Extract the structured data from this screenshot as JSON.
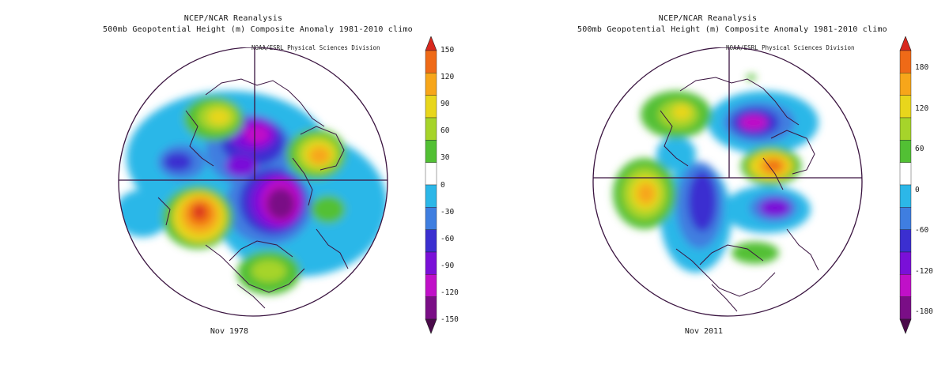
{
  "panels": [
    {
      "title_line1": "NCEP/NCAR Reanalysis",
      "title_line2": "500mb Geopotential Height (m) Composite Anomaly 1981-2010 climo",
      "credit": "NOAA/ESRL Physical Sciences Division",
      "caption": "Nov 1978",
      "colorbar_ticks": [
        "150",
        "120",
        "90",
        "60",
        "30",
        "0",
        "-30",
        "-60",
        "-90",
        "-120",
        "-150"
      ]
    },
    {
      "title_line1": "NCEP/NCAR Reanalysis",
      "title_line2": "500mb Geopotential Height (m) Composite Anomaly 1981-2010 climo",
      "credit": "NOAA/ESRL Physical Sciences Division",
      "caption": "Nov 2011",
      "colorbar_ticks": [
        "180",
        "120",
        "60",
        "0",
        "-60",
        "-120",
        "-180"
      ]
    }
  ],
  "colorbar_colors": [
    "#d8281e",
    "#ef6a17",
    "#f7a61a",
    "#e8d61c",
    "#a6d42a",
    "#52c034",
    "#ffffff",
    "#2cb7e8",
    "#3f7ee0",
    "#3b2fd0",
    "#7a10d8",
    "#c010c8",
    "#7a0e86",
    "#4a0a4a"
  ]
}
